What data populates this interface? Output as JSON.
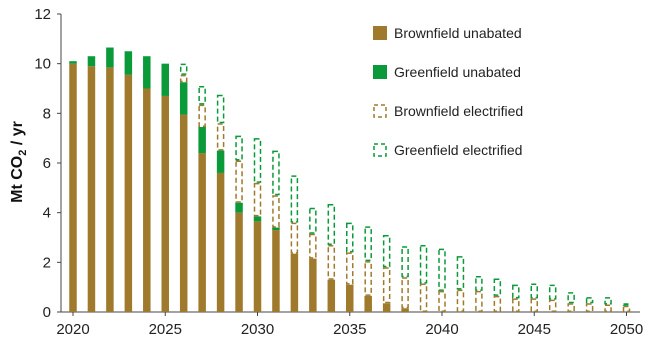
{
  "chart_data": {
    "type": "bar",
    "stacked": true,
    "title": "",
    "xlabel": "",
    "ylabel": "Mt CO",
    "ylabel_sub": "2",
    "ylabel_tail": " / yr",
    "ylim": [
      0,
      12
    ],
    "yticks": [
      "0",
      "2",
      "4",
      "6",
      "8",
      "10",
      "12"
    ],
    "xticks": [
      "2020",
      "2025",
      "2030",
      "2035",
      "2040",
      "2045",
      "2050"
    ],
    "legend_position": "top-right",
    "categories": [
      2020,
      2021,
      2022,
      2023,
      2024,
      2025,
      2026,
      2027,
      2028,
      2029,
      2030,
      2031,
      2032,
      2033,
      2034,
      2035,
      2036,
      2037,
      2038,
      2039,
      2040,
      2041,
      2042,
      2043,
      2044,
      2045,
      2046,
      2047,
      2048,
      2049,
      2050
    ],
    "series": [
      {
        "name": "Brownfield unabated",
        "style": "solid",
        "color": "#a07a2c",
        "values": [
          10.0,
          9.9,
          9.85,
          9.55,
          9.0,
          8.7,
          7.95,
          6.4,
          5.6,
          4.0,
          3.65,
          3.3,
          2.35,
          2.15,
          1.3,
          1.1,
          0.65,
          0.35,
          0.15,
          0,
          0,
          0,
          0,
          0,
          0,
          0,
          0,
          0,
          0,
          0,
          0
        ]
      },
      {
        "name": "Greenfield unabated",
        "style": "solid",
        "color": "#0a9a3a",
        "values": [
          0.1,
          0.4,
          0.8,
          0.95,
          1.3,
          1.3,
          1.3,
          1.05,
          0.9,
          0.4,
          0.2,
          0.1,
          0,
          0,
          0,
          0,
          0,
          0,
          0,
          0,
          0,
          0,
          0,
          0,
          0,
          0,
          0,
          0,
          0,
          0,
          0
        ]
      },
      {
        "name": "Brownfield electrified",
        "style": "dashed",
        "color": "#a07a2c",
        "values": [
          0,
          0,
          0,
          0,
          0,
          0,
          0.3,
          0.9,
          1.1,
          1.7,
          1.35,
          1.3,
          1.25,
          1.0,
          1.4,
          1.3,
          1.4,
          1.45,
          1.25,
          1.15,
          0.85,
          0.9,
          0.85,
          0.65,
          0.55,
          0.55,
          0.5,
          0.35,
          0.35,
          0.3,
          0.25
        ]
      },
      {
        "name": "Greenfield electrified",
        "style": "dashed",
        "color": "#0a9a3a",
        "values": [
          0,
          0,
          0,
          0,
          0,
          0,
          0.45,
          0.75,
          1.15,
          1.0,
          1.8,
          1.8,
          1.9,
          1.05,
          1.65,
          1.2,
          1.4,
          1.3,
          1.25,
          1.55,
          1.7,
          1.35,
          0.6,
          0.7,
          0.55,
          0.6,
          0.6,
          0.45,
          0.25,
          0.3,
          0.1
        ]
      }
    ]
  }
}
